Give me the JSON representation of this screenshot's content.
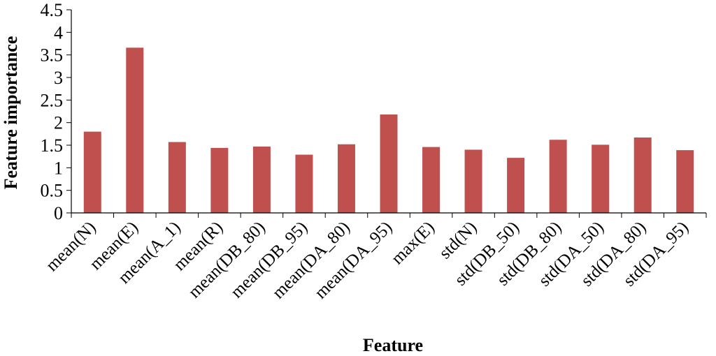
{
  "chart_data": {
    "type": "bar",
    "xlabel": "Feature",
    "ylabel": "Feature importance",
    "ylim": [
      0,
      4.5
    ],
    "yticks": [
      "0",
      "0.5",
      "1",
      "1.5",
      "2",
      "2.5",
      "3",
      "3.5",
      "4",
      "4.5"
    ],
    "categories": [
      "mean(N)",
      "mean(E)",
      "mean(A_1)",
      "mean(R)",
      "mean(DB_80)",
      "mean(DB_95)",
      "mean(DA_80)",
      "mean(DA_95)",
      "max(E)",
      "std(N)",
      "std(DB_50)",
      "std(DB_80)",
      "std(DA_50)",
      "std(DA_80)",
      "std(DA_95)"
    ],
    "values": [
      1.8,
      3.66,
      1.57,
      1.44,
      1.47,
      1.29,
      1.52,
      2.18,
      1.46,
      1.4,
      1.22,
      1.62,
      1.51,
      1.67,
      1.39
    ],
    "bar_color": "#c0504d",
    "grid": false,
    "legend": "none"
  }
}
